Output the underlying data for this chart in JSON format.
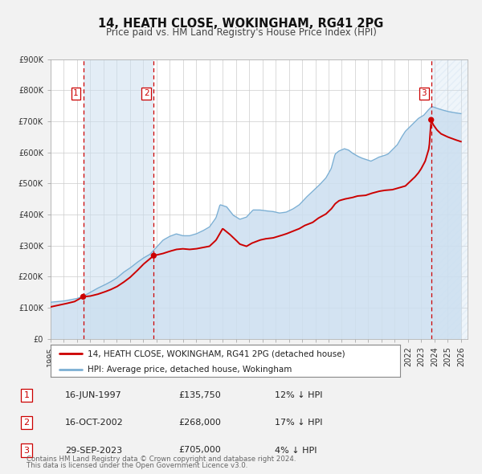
{
  "title": "14, HEATH CLOSE, WOKINGHAM, RG41 2PG",
  "subtitle": "Price paid vs. HM Land Registry's House Price Index (HPI)",
  "background_color": "#f2f2f2",
  "plot_bg_color": "#ffffff",
  "grid_color": "#cccccc",
  "ylim": [
    0,
    900000
  ],
  "yticks": [
    0,
    100000,
    200000,
    300000,
    400000,
    500000,
    600000,
    700000,
    800000,
    900000
  ],
  "ytick_labels": [
    "£0",
    "£100K",
    "£200K",
    "£300K",
    "£400K",
    "£500K",
    "£600K",
    "£700K",
    "£800K",
    "£900K"
  ],
  "xlim_start": 1995.0,
  "xlim_end": 2026.5,
  "xticks": [
    1995,
    1996,
    1997,
    1998,
    1999,
    2000,
    2001,
    2002,
    2003,
    2004,
    2005,
    2006,
    2007,
    2008,
    2009,
    2010,
    2011,
    2012,
    2013,
    2014,
    2015,
    2016,
    2017,
    2018,
    2019,
    2020,
    2021,
    2022,
    2023,
    2024,
    2025,
    2026
  ],
  "price_paid_color": "#cc0000",
  "hpi_color": "#7bafd4",
  "hpi_fill_color": "#ccdff0",
  "transaction_dot_color": "#cc0000",
  "vline_color": "#cc0000",
  "vline_shade_color": "#ccdff0",
  "hatch_color": "#bbbbcc",
  "transactions": [
    {
      "label": "1",
      "date": 1997.46,
      "price": 135750,
      "pct": "12%"
    },
    {
      "label": "2",
      "date": 2002.79,
      "price": 268000,
      "pct": "17%"
    },
    {
      "label": "3",
      "date": 2023.75,
      "price": 705000,
      "pct": "4%"
    }
  ],
  "transaction_table": [
    {
      "num": "1",
      "date": "16-JUN-1997",
      "price": "£135,750",
      "pct": "12% ↓ HPI"
    },
    {
      "num": "2",
      "date": "16-OCT-2002",
      "price": "£268,000",
      "pct": "17% ↓ HPI"
    },
    {
      "num": "3",
      "date": "29-SEP-2023",
      "price": "£705,000",
      "pct": "4% ↓ HPI"
    }
  ],
  "legend_line1": "14, HEATH CLOSE, WOKINGHAM, RG41 2PG (detached house)",
  "legend_line2": "HPI: Average price, detached house, Wokingham",
  "footer1": "Contains HM Land Registry data © Crown copyright and database right 2024.",
  "footer2": "This data is licensed under the Open Government Licence v3.0.",
  "hpi_anchors": [
    [
      1995.0,
      118000
    ],
    [
      1996.0,
      122000
    ],
    [
      1997.0,
      130000
    ],
    [
      1997.5,
      138000
    ],
    [
      1998.0,
      150000
    ],
    [
      1998.5,
      162000
    ],
    [
      1999.0,
      172000
    ],
    [
      1999.5,
      183000
    ],
    [
      2000.0,
      196000
    ],
    [
      2000.5,
      214000
    ],
    [
      2001.0,
      228000
    ],
    [
      2001.5,
      245000
    ],
    [
      2002.0,
      260000
    ],
    [
      2002.5,
      272000
    ],
    [
      2003.0,
      295000
    ],
    [
      2003.5,
      318000
    ],
    [
      2004.0,
      330000
    ],
    [
      2004.5,
      338000
    ],
    [
      2005.0,
      332000
    ],
    [
      2005.5,
      332000
    ],
    [
      2006.0,
      338000
    ],
    [
      2006.5,
      348000
    ],
    [
      2007.0,
      360000
    ],
    [
      2007.5,
      390000
    ],
    [
      2007.8,
      432000
    ],
    [
      2008.3,
      425000
    ],
    [
      2008.8,
      398000
    ],
    [
      2009.3,
      385000
    ],
    [
      2009.8,
      392000
    ],
    [
      2010.3,
      415000
    ],
    [
      2010.8,
      415000
    ],
    [
      2011.3,
      412000
    ],
    [
      2011.8,
      410000
    ],
    [
      2012.3,
      405000
    ],
    [
      2012.8,
      408000
    ],
    [
      2013.3,
      418000
    ],
    [
      2013.8,
      432000
    ],
    [
      2014.3,
      455000
    ],
    [
      2014.8,
      475000
    ],
    [
      2015.3,
      495000
    ],
    [
      2015.8,
      518000
    ],
    [
      2016.2,
      548000
    ],
    [
      2016.5,
      595000
    ],
    [
      2016.8,
      605000
    ],
    [
      2017.2,
      612000
    ],
    [
      2017.5,
      608000
    ],
    [
      2017.8,
      598000
    ],
    [
      2018.2,
      588000
    ],
    [
      2018.5,
      582000
    ],
    [
      2018.8,
      578000
    ],
    [
      2019.2,
      572000
    ],
    [
      2019.5,
      578000
    ],
    [
      2019.8,
      585000
    ],
    [
      2020.2,
      590000
    ],
    [
      2020.5,
      595000
    ],
    [
      2020.8,
      608000
    ],
    [
      2021.2,
      625000
    ],
    [
      2021.5,
      648000
    ],
    [
      2021.8,
      668000
    ],
    [
      2022.2,
      685000
    ],
    [
      2022.5,
      698000
    ],
    [
      2022.8,
      710000
    ],
    [
      2023.2,
      720000
    ],
    [
      2023.5,
      735000
    ],
    [
      2023.8,
      748000
    ],
    [
      2024.2,
      742000
    ],
    [
      2024.5,
      738000
    ],
    [
      2025.0,
      732000
    ],
    [
      2025.5,
      728000
    ],
    [
      2026.0,
      725000
    ]
  ],
  "pp_anchors": [
    [
      1995.0,
      103000
    ],
    [
      1996.0,
      112000
    ],
    [
      1996.8,
      120000
    ],
    [
      1997.46,
      135750
    ],
    [
      1998.0,
      138000
    ],
    [
      1998.5,
      143000
    ],
    [
      1999.0,
      150000
    ],
    [
      1999.5,
      158000
    ],
    [
      2000.0,
      168000
    ],
    [
      2000.5,
      182000
    ],
    [
      2001.0,
      198000
    ],
    [
      2001.5,
      218000
    ],
    [
      2002.0,
      240000
    ],
    [
      2002.5,
      258000
    ],
    [
      2002.79,
      268000
    ],
    [
      2003.0,
      270000
    ],
    [
      2003.5,
      275000
    ],
    [
      2004.0,
      282000
    ],
    [
      2004.5,
      288000
    ],
    [
      2005.0,
      290000
    ],
    [
      2005.5,
      288000
    ],
    [
      2006.0,
      290000
    ],
    [
      2006.5,
      294000
    ],
    [
      2007.0,
      298000
    ],
    [
      2007.5,
      318000
    ],
    [
      2008.0,
      355000
    ],
    [
      2008.5,
      338000
    ],
    [
      2009.0,
      318000
    ],
    [
      2009.3,
      305000
    ],
    [
      2009.8,
      298000
    ],
    [
      2010.2,
      308000
    ],
    [
      2010.8,
      318000
    ],
    [
      2011.2,
      322000
    ],
    [
      2011.8,
      325000
    ],
    [
      2012.2,
      330000
    ],
    [
      2012.8,
      338000
    ],
    [
      2013.2,
      345000
    ],
    [
      2013.8,
      355000
    ],
    [
      2014.2,
      365000
    ],
    [
      2014.8,
      375000
    ],
    [
      2015.2,
      388000
    ],
    [
      2015.8,
      402000
    ],
    [
      2016.2,
      418000
    ],
    [
      2016.5,
      435000
    ],
    [
      2016.8,
      445000
    ],
    [
      2017.2,
      450000
    ],
    [
      2017.8,
      455000
    ],
    [
      2018.2,
      460000
    ],
    [
      2018.8,
      462000
    ],
    [
      2019.2,
      468000
    ],
    [
      2019.8,
      475000
    ],
    [
      2020.2,
      478000
    ],
    [
      2020.8,
      480000
    ],
    [
      2021.2,
      485000
    ],
    [
      2021.8,
      492000
    ],
    [
      2022.2,
      508000
    ],
    [
      2022.5,
      520000
    ],
    [
      2022.8,
      535000
    ],
    [
      2023.0,
      548000
    ],
    [
      2023.3,
      572000
    ],
    [
      2023.6,
      615000
    ],
    [
      2023.75,
      705000
    ],
    [
      2023.9,
      690000
    ],
    [
      2024.2,
      672000
    ],
    [
      2024.5,
      660000
    ],
    [
      2025.0,
      650000
    ],
    [
      2025.5,
      642000
    ],
    [
      2026.0,
      635000
    ]
  ]
}
